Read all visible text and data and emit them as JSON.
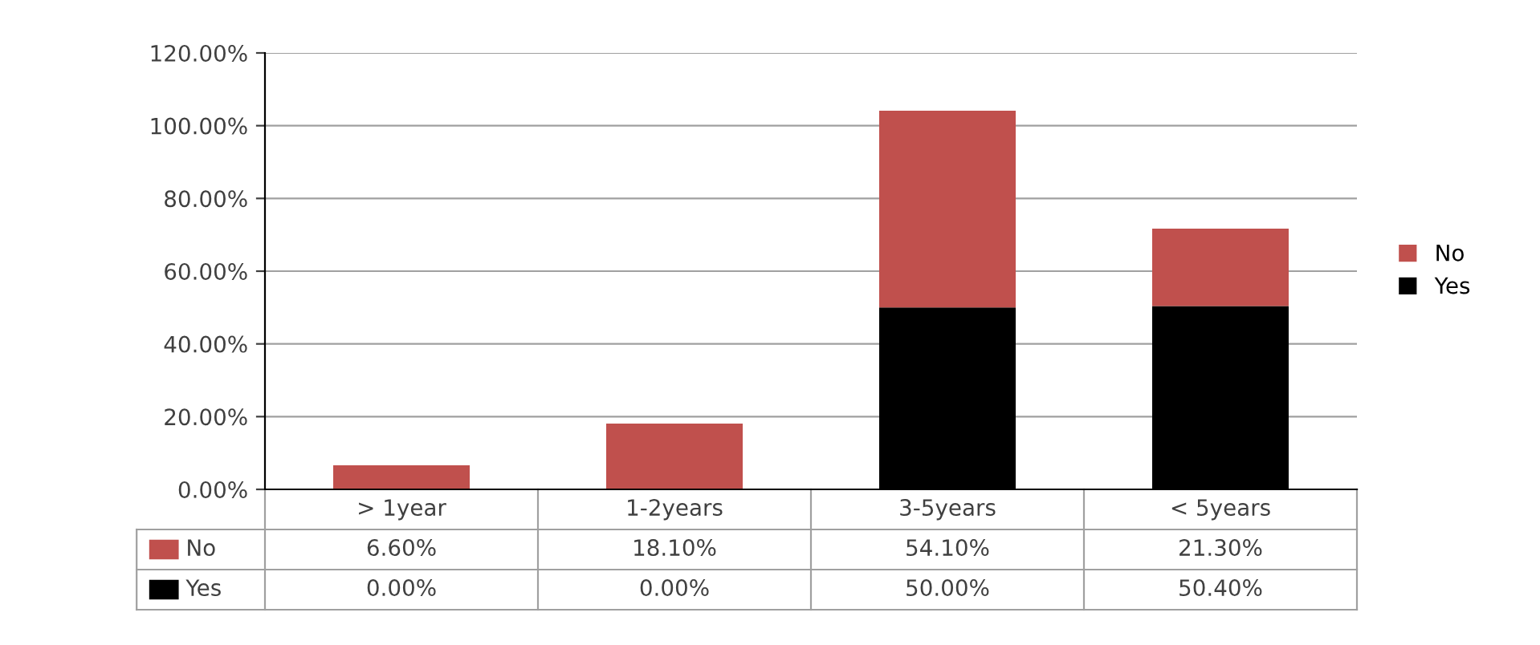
{
  "chart_data": {
    "type": "bar",
    "stacked": true,
    "categories": [
      "> 1year",
      "1-2years",
      "3-5years",
      "< 5years"
    ],
    "series": [
      {
        "name": "Yes",
        "color": "#000000",
        "values": [
          0.0,
          0.0,
          50.0,
          50.4
        ],
        "value_labels": [
          "0.00%",
          "0.00%",
          "50.00%",
          "50.40%"
        ]
      },
      {
        "name": "No",
        "color": "#c0504d",
        "values": [
          6.6,
          18.1,
          54.1,
          21.3
        ],
        "value_labels": [
          "6.60%",
          "18.10%",
          "54.10%",
          "21.30%"
        ]
      }
    ],
    "ylim": [
      0,
      120
    ],
    "yticks": [
      {
        "value": 0,
        "label": "0.00%"
      },
      {
        "value": 20,
        "label": "20.00%"
      },
      {
        "value": 40,
        "label": "40.00%"
      },
      {
        "value": 60,
        "label": "60.00%"
      },
      {
        "value": 80,
        "label": "80.00%"
      },
      {
        "value": 100,
        "label": "100.00%"
      },
      {
        "value": 120,
        "label": "120.00%"
      }
    ],
    "grid": "y",
    "legend": "right"
  }
}
